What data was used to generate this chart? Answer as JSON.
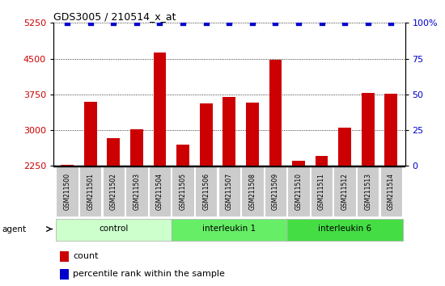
{
  "title": "GDS3005 / 210514_x_at",
  "samples": [
    "GSM211500",
    "GSM211501",
    "GSM211502",
    "GSM211503",
    "GSM211504",
    "GSM211505",
    "GSM211506",
    "GSM211507",
    "GSM211508",
    "GSM211509",
    "GSM211510",
    "GSM211511",
    "GSM211512",
    "GSM211513",
    "GSM211514"
  ],
  "counts": [
    2270,
    3600,
    2840,
    3020,
    4620,
    2700,
    3560,
    3700,
    3580,
    4480,
    2350,
    2460,
    3060,
    3780,
    3760
  ],
  "percentile": [
    100,
    100,
    100,
    100,
    100,
    100,
    100,
    100,
    100,
    100,
    100,
    100,
    100,
    100,
    100
  ],
  "bar_color": "#cc0000",
  "dot_color": "#0000cc",
  "ylim_left": [
    2250,
    5250
  ],
  "ylim_right": [
    0,
    100
  ],
  "yticks_left": [
    2250,
    3000,
    3750,
    4500,
    5250
  ],
  "yticks_right": [
    0,
    25,
    50,
    75,
    100
  ],
  "groups": [
    {
      "label": "control",
      "start": 0,
      "end": 5,
      "color": "#ccffcc"
    },
    {
      "label": "interleukin 1",
      "start": 5,
      "end": 10,
      "color": "#66ee66"
    },
    {
      "label": "interleukin 6",
      "start": 10,
      "end": 15,
      "color": "#44dd44"
    }
  ],
  "agent_label": "agent",
  "legend_count_label": "count",
  "legend_percentile_label": "percentile rank within the sample",
  "tick_label_bg": "#cccccc",
  "bar_width": 0.55
}
